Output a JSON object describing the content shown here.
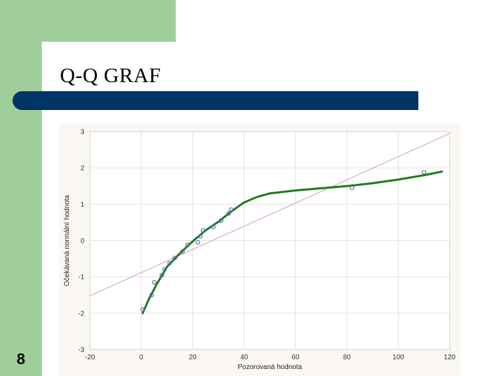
{
  "slide": {
    "title": "Q-Q GRAF",
    "number": "8",
    "colors": {
      "green": "#9fce9a",
      "bar": "#003366"
    }
  },
  "chart_data": {
    "type": "scatter",
    "title": "",
    "xlabel": "Pozorovaná hodnota",
    "ylabel": "Očekávaná normální hodnota",
    "xlim": [
      -20,
      120
    ],
    "ylim": [
      -3,
      3
    ],
    "x_ticks": [
      -20,
      0,
      20,
      40,
      60,
      80,
      100,
      120
    ],
    "y_ticks": [
      -3,
      -2,
      -1,
      0,
      1,
      2,
      3
    ],
    "grid": true,
    "points": [
      {
        "x": 0.5,
        "y": -1.9
      },
      {
        "x": 4,
        "y": -1.5
      },
      {
        "x": 5,
        "y": -1.15
      },
      {
        "x": 8,
        "y": -0.95
      },
      {
        "x": 9,
        "y": -0.8
      },
      {
        "x": 11,
        "y": -0.62
      },
      {
        "x": 13,
        "y": -0.48
      },
      {
        "x": 16,
        "y": -0.3
      },
      {
        "x": 18,
        "y": -0.12
      },
      {
        "x": 22,
        "y": -0.05
      },
      {
        "x": 23,
        "y": 0.12
      },
      {
        "x": 24,
        "y": 0.28
      },
      {
        "x": 28,
        "y": 0.38
      },
      {
        "x": 31,
        "y": 0.55
      },
      {
        "x": 34,
        "y": 0.75
      },
      {
        "x": 35,
        "y": 0.85
      },
      {
        "x": 82,
        "y": 1.45
      },
      {
        "x": 110,
        "y": 1.88
      }
    ],
    "reference_line": [
      {
        "x": -20,
        "y": -1.52
      },
      {
        "x": 120,
        "y": 2.95
      }
    ],
    "fitted_curve": [
      {
        "x": 0.5,
        "y": -2.0
      },
      {
        "x": 3,
        "y": -1.6
      },
      {
        "x": 6,
        "y": -1.2
      },
      {
        "x": 10,
        "y": -0.72
      },
      {
        "x": 15,
        "y": -0.35
      },
      {
        "x": 20,
        "y": -0.02
      },
      {
        "x": 25,
        "y": 0.28
      },
      {
        "x": 30,
        "y": 0.52
      },
      {
        "x": 35,
        "y": 0.8
      },
      {
        "x": 40,
        "y": 1.05
      },
      {
        "x": 45,
        "y": 1.2
      },
      {
        "x": 50,
        "y": 1.3
      },
      {
        "x": 60,
        "y": 1.38
      },
      {
        "x": 70,
        "y": 1.44
      },
      {
        "x": 80,
        "y": 1.5
      },
      {
        "x": 90,
        "y": 1.58
      },
      {
        "x": 100,
        "y": 1.68
      },
      {
        "x": 110,
        "y": 1.8
      },
      {
        "x": 117,
        "y": 1.9
      }
    ],
    "colors": {
      "points": "#5a6aa8",
      "reference": "#d4a0a0",
      "curve": "#1f7a1f",
      "grid": "#e6e0e0",
      "frame": "#cfcfcf"
    }
  }
}
